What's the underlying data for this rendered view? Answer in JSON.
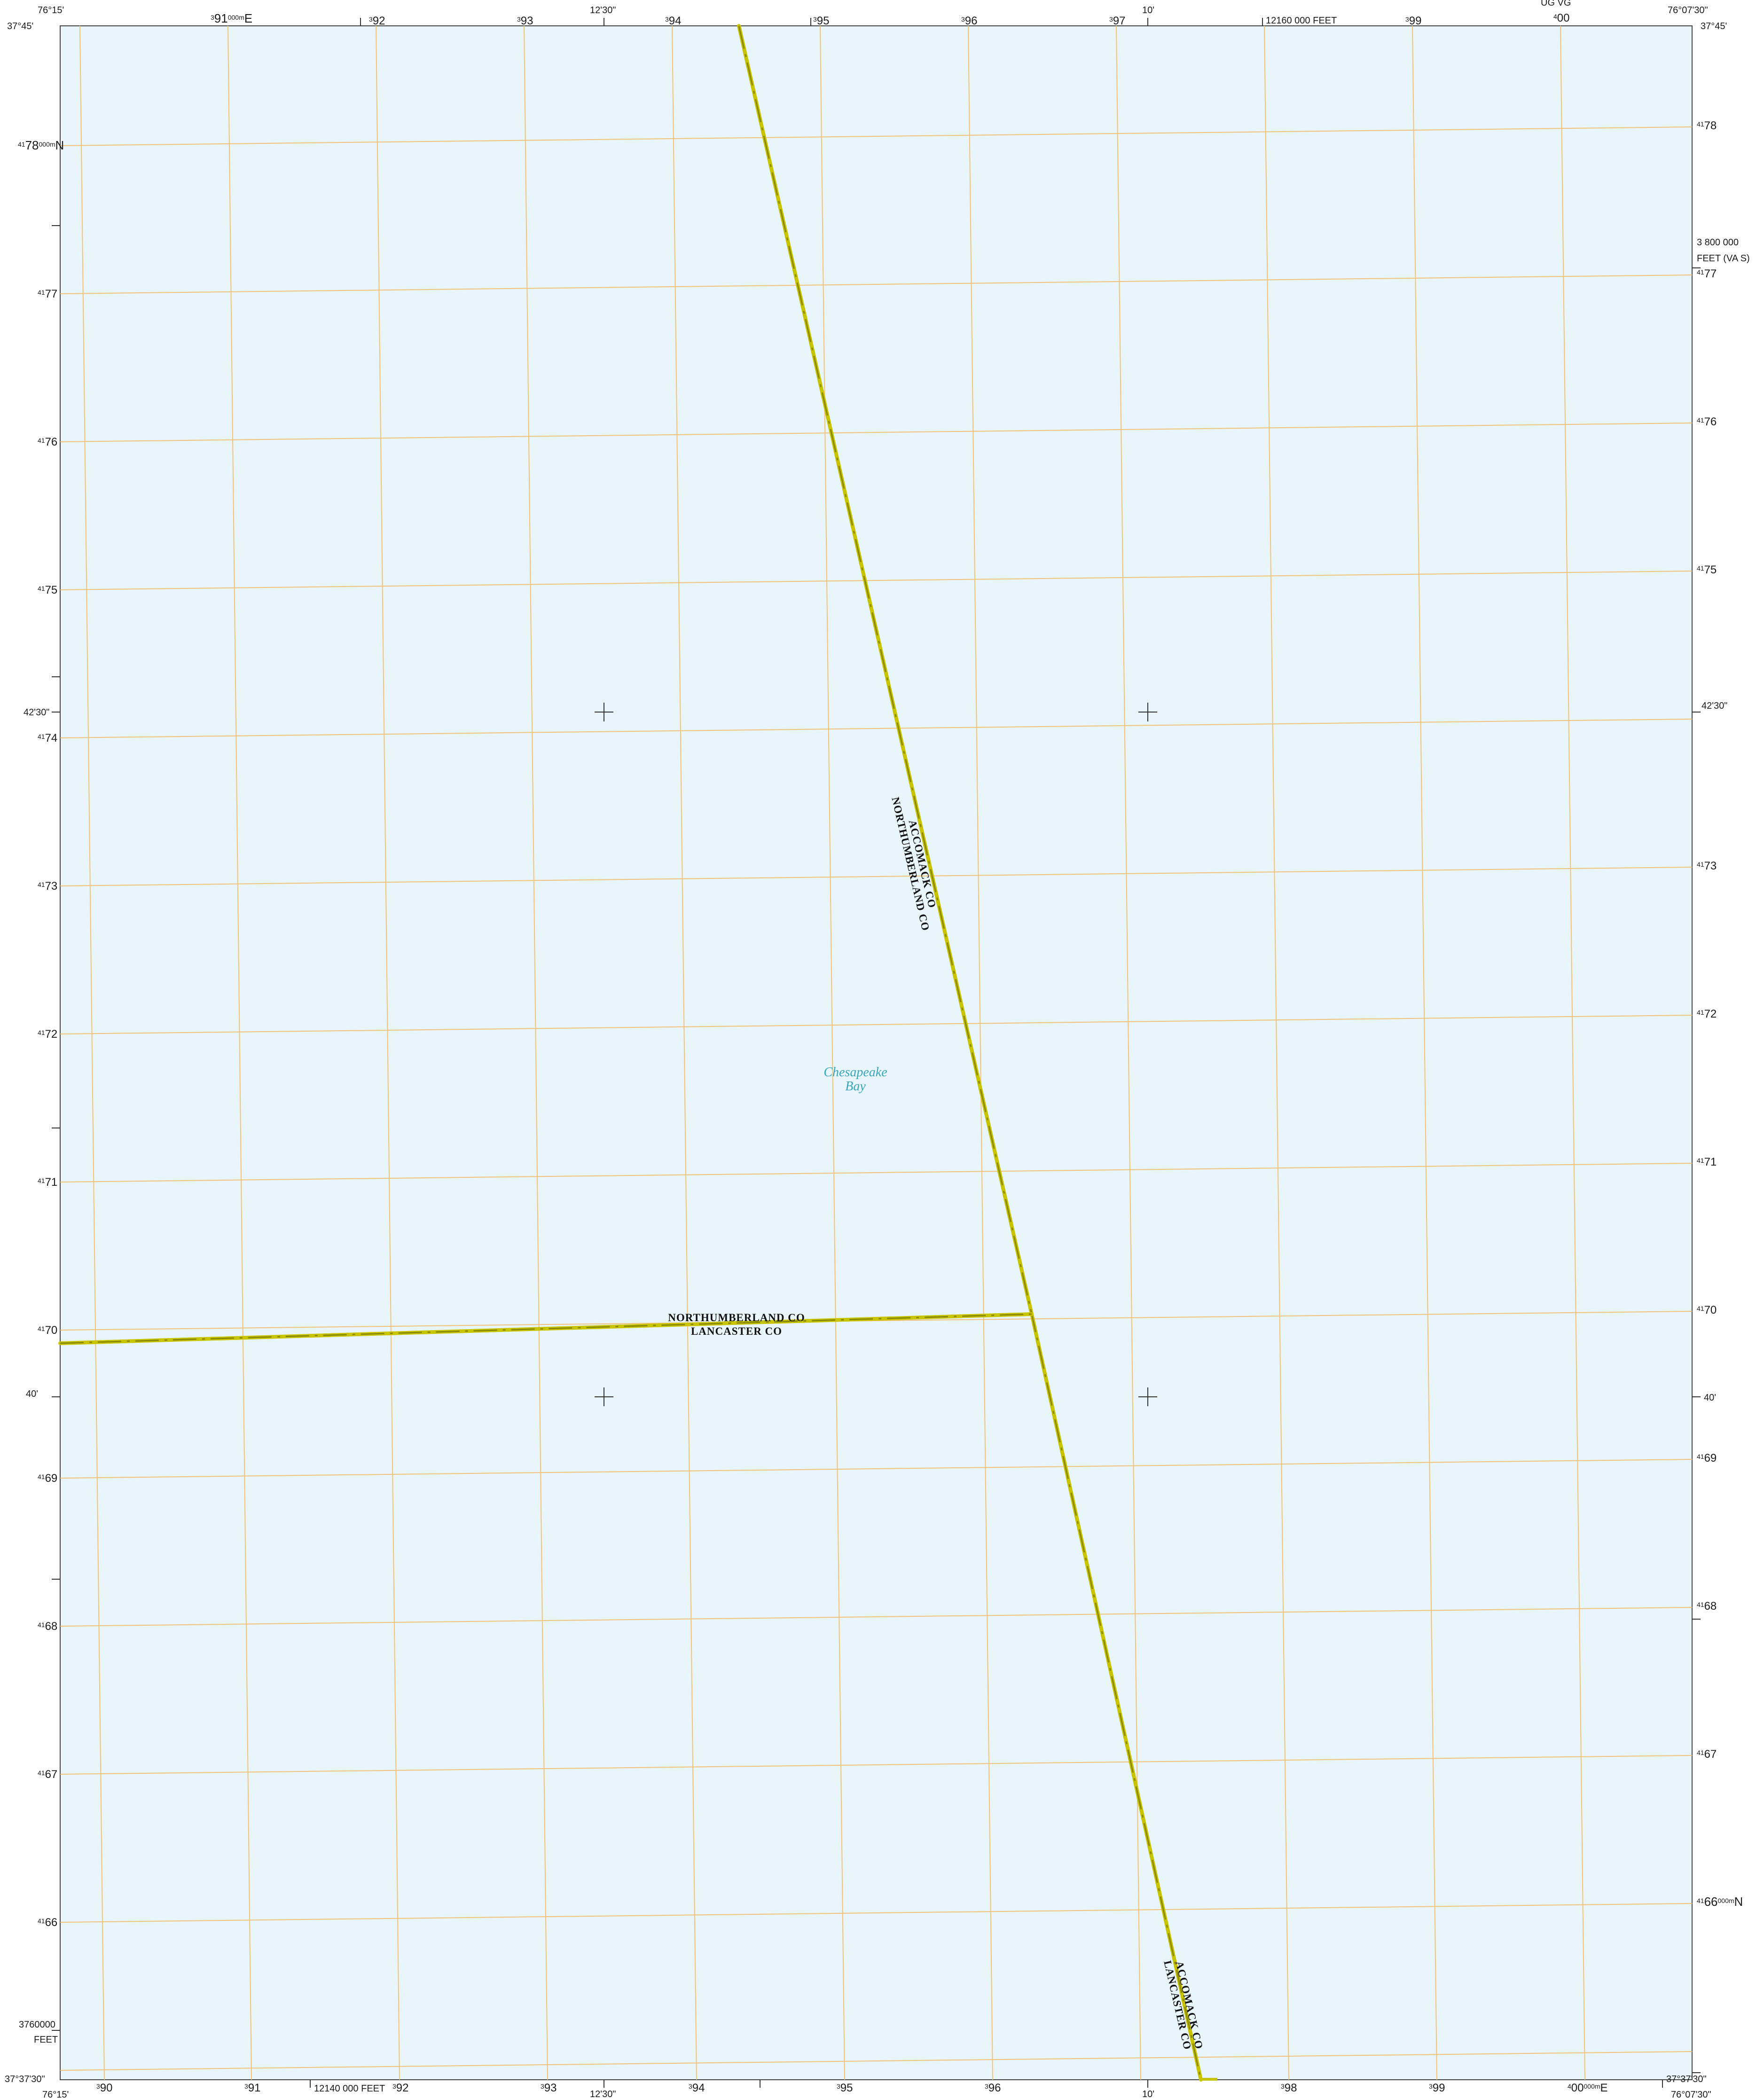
{
  "map": {
    "colors": {
      "water": "#e8f6fc",
      "grid": "#f2c27a",
      "boundary": "#c9c400",
      "boundary_core": "#8a8a00",
      "water_label": "#3aa6b8",
      "neatline": "#444444"
    },
    "corners": {
      "top_left_lon": "76°15'",
      "top_left_lat": "37°45'",
      "top_right_lon": "76°07'30\"",
      "top_right_lat": "37°45'",
      "bottom_left_lat": "37°37'30\"",
      "bottom_left_lon": "76°15'",
      "bottom_right_lat": "37°37'30\"",
      "bottom_right_lon": "76°07'30\""
    },
    "top_labels": {
      "utm_first": "91",
      "utm_first_prefix": "3",
      "utm_first_suffix": "000m",
      "utm_first_unit": "E",
      "utm": [
        "92",
        "93",
        "94",
        "95",
        "96",
        "97",
        "99"
      ],
      "utm_prefix": "3",
      "utm_last": "00",
      "utm_last_prefix": "4",
      "minute_1230": "12'30\"",
      "minute_10": "10'",
      "state_plane": "12160 000 FEET",
      "gzd": "UG   VG"
    },
    "bottom_labels": {
      "utm": [
        "90",
        "91",
        "92",
        "93",
        "94",
        "95",
        "96",
        "98",
        "99"
      ],
      "utm_prefix": "3",
      "utm_last": "00",
      "utm_last_prefix": "4",
      "utm_last_suffix": "000m",
      "utm_last_unit": "E",
      "minute_1230": "12'30\"",
      "minute_10": "10'",
      "state_plane": "12140 000 FEET"
    },
    "left_labels": {
      "northing_first": "78",
      "northing_first_prefix": "41",
      "northing_first_suffix": "000m",
      "northing_first_unit": "N",
      "northings": [
        "77",
        "76",
        "75",
        "74",
        "73",
        "72",
        "71",
        "70",
        "69",
        "68",
        "67",
        "66"
      ],
      "northing_prefix": "41",
      "minute_4230": "42'30\"",
      "minute_40": "40'",
      "state_plane_value": "3760000",
      "state_plane_unit": "FEET"
    },
    "right_labels": {
      "northings": [
        "78",
        "77",
        "76",
        "75",
        "73",
        "72",
        "71",
        "70",
        "69",
        "68",
        "67"
      ],
      "northing_prefix": "41",
      "northing_last": "66",
      "northing_last_suffix": "000m",
      "northing_last_unit": "N",
      "minute_4230": "42'30\"",
      "minute_40": "40'",
      "state_plane_value": "3 800 000",
      "state_plane_unit": "FEET (VA S)"
    },
    "features": {
      "water_name_line1": "Chesapeake",
      "water_name_line2": "Bay",
      "county_accomack": "ACCOMACK CO",
      "county_northumberland": "NORTHUMBERLAND CO",
      "county_lancaster": "LANCASTER CO"
    }
  }
}
